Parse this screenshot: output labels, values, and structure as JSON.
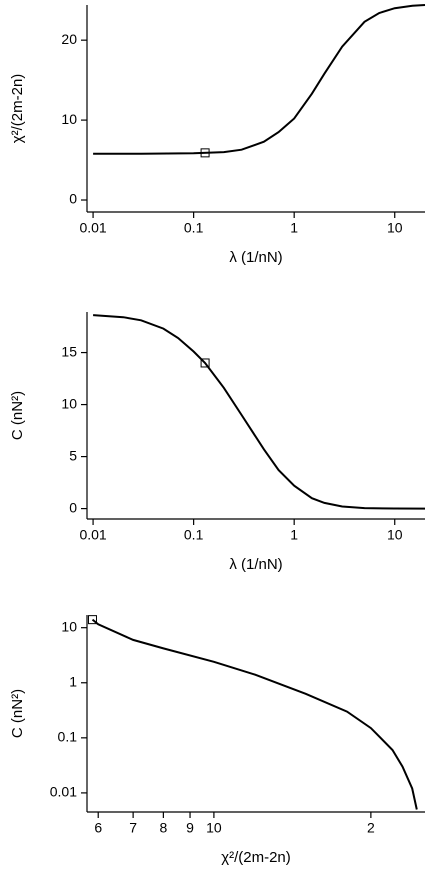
{
  "chart_data": [
    {
      "type": "line",
      "xlabel": "λ (1/nN)",
      "ylabel": "χ²/(2m-2n)",
      "xlog": true,
      "ylog": false,
      "color": "#000000",
      "x": [
        0.01,
        0.03,
        0.1,
        0.2,
        0.3,
        0.5,
        0.7,
        1,
        1.5,
        2,
        3,
        5,
        7,
        10,
        15,
        20
      ],
      "values": [
        5.8,
        5.8,
        5.85,
        6.0,
        6.3,
        7.3,
        8.5,
        10.2,
        13.3,
        15.8,
        19.2,
        22.3,
        23.4,
        24.0,
        24.3,
        24.4
      ],
      "marker": {
        "x": 0.13,
        "y": 5.9
      },
      "xlim": [
        0.0087,
        20
      ],
      "ylim": [
        -1.5,
        24.4
      ],
      "xticks": [
        0.01,
        0.1,
        1,
        10
      ],
      "yticks": [
        0,
        10,
        20
      ]
    },
    {
      "type": "line",
      "xlabel": "λ (1/nN)",
      "ylabel": "C (nN²)",
      "xlog": true,
      "ylog": false,
      "color": "#000000",
      "x": [
        0.01,
        0.02,
        0.03,
        0.05,
        0.07,
        0.1,
        0.13,
        0.2,
        0.3,
        0.5,
        0.7,
        1,
        1.5,
        2,
        3,
        5,
        10,
        20
      ],
      "values": [
        18.6,
        18.4,
        18.1,
        17.3,
        16.4,
        15.1,
        14.0,
        11.6,
        9.0,
        5.7,
        3.7,
        2.2,
        1.0,
        0.55,
        0.2,
        0.05,
        0.01,
        0
      ],
      "marker": {
        "x": 0.13,
        "y": 14.0
      },
      "xlim": [
        0.0087,
        20
      ],
      "ylim": [
        -1,
        18.9
      ],
      "xticks": [
        0.01,
        0.1,
        1,
        10
      ],
      "yticks": [
        0,
        5,
        10,
        15
      ]
    },
    {
      "type": "line",
      "xlabel": "χ²/(2m-2n)",
      "ylabel": "C (nN²)",
      "xlog": true,
      "ylog": true,
      "color": "#000000",
      "x": [
        5.85,
        6,
        7,
        8,
        10,
        12,
        15,
        18,
        20,
        22,
        23,
        24,
        24.5
      ],
      "values": [
        14,
        11.5,
        6,
        4.2,
        2.4,
        1.4,
        0.63,
        0.3,
        0.15,
        0.06,
        0.03,
        0.012,
        0.005
      ],
      "marker": {
        "x": 5.85,
        "y": 14
      },
      "xlim": [
        5.71,
        25.4
      ],
      "ylim": [
        0.0045,
        17
      ],
      "xticks": [
        6,
        7,
        8,
        9,
        10,
        {
          "value": 20,
          "label": "2"
        }
      ],
      "yticks": [
        0.01,
        0.1,
        1,
        10
      ]
    }
  ]
}
